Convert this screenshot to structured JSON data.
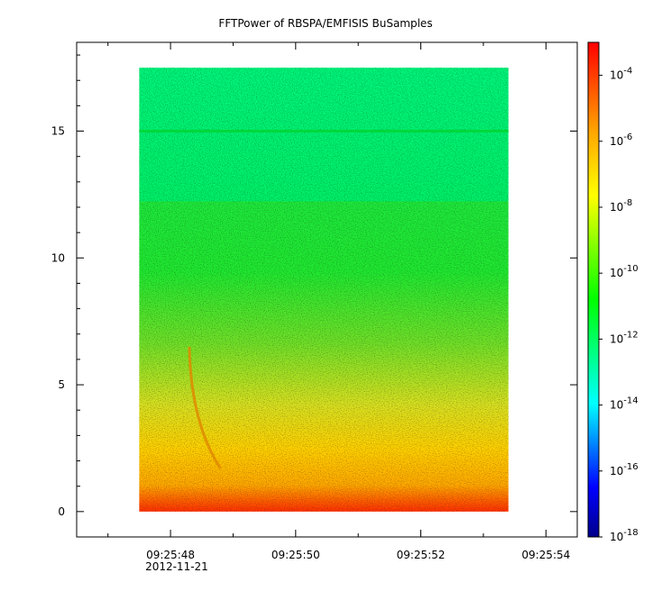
{
  "chart_data": {
    "type": "heatmap",
    "title": "FFTPower of RBSPA/EMFISIS  BuSamples",
    "xlabel": "",
    "ylabel": "",
    "x_ticks": [
      {
        "time": "09:25:48",
        "seconds": 48,
        "date": "2012-11-21"
      },
      {
        "time": "09:25:50",
        "seconds": 50
      },
      {
        "time": "09:25:52",
        "seconds": 52
      },
      {
        "time": "09:25:54",
        "seconds": 54
      }
    ],
    "xlim_seconds": [
      46.5,
      54.5
    ],
    "data_time_range_seconds": [
      47.5,
      53.4
    ],
    "y_ticks": [
      0,
      5,
      10,
      15
    ],
    "ylim": [
      -1,
      18.5
    ],
    "data_freq_range": [
      0,
      17.5
    ],
    "colorbar": {
      "scale": "log",
      "tick_exponents": [
        -4,
        -6,
        -8,
        -10,
        -12,
        -14,
        -16,
        -18
      ],
      "tick_base": "10",
      "range": [
        1e-18,
        0.001
      ],
      "colors": [
        "#00008b",
        "#0000ff",
        "#00ffff",
        "#00ff00",
        "#ffff00",
        "#ffa500",
        "#ff0000"
      ]
    },
    "power_bands": [
      {
        "freq_range": [
          12.3,
          17.5
        ],
        "level": 1e-12,
        "color": "green-cyan"
      },
      {
        "freq_range": [
          15.0,
          15.0
        ],
        "level": 1e-10,
        "color": "green",
        "note_line": true
      },
      {
        "freq_range": [
          6.5,
          12.3
        ],
        "level": 1e-10,
        "color": "green"
      },
      {
        "freq_range": [
          3.0,
          6.5
        ],
        "level": 1e-09,
        "color": "yellow-green"
      },
      {
        "freq_range": [
          0.5,
          3.0
        ],
        "level": 1e-08,
        "color": "yellow-orange"
      },
      {
        "freq_range": [
          0.0,
          0.5
        ],
        "level": 1e-06,
        "color": "orange-red"
      }
    ],
    "feature": {
      "type": "dispersive tone",
      "start": {
        "seconds": 48.3,
        "freq": 6.5
      },
      "end": {
        "seconds": 48.8,
        "freq": 1.7
      },
      "level": 1e-07
    },
    "grid": false
  }
}
